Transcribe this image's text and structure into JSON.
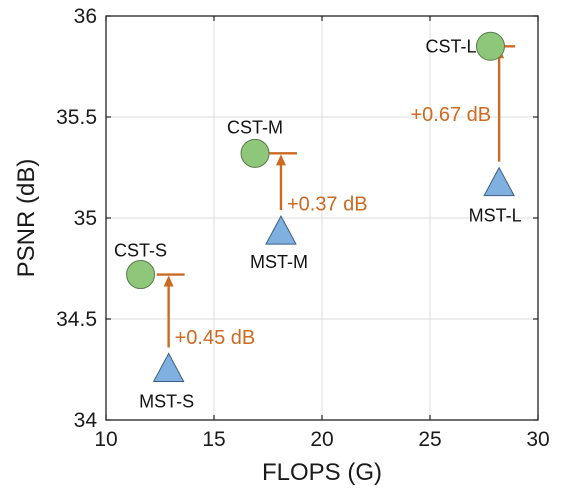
{
  "chart_data": {
    "type": "scatter",
    "xlabel": "FLOPS (G)",
    "ylabel": "PSNR (dB)",
    "xlim": [
      10,
      30
    ],
    "ylim": [
      34,
      36
    ],
    "xticks": [
      10,
      15,
      20,
      25,
      30
    ],
    "yticks": [
      34,
      34.5,
      35,
      35.5,
      36
    ],
    "xtick_labels": [
      "10",
      "15",
      "20",
      "25",
      "30"
    ],
    "ytick_labels": [
      "34",
      "34.5",
      "35",
      "35.5",
      "36"
    ],
    "grid": true,
    "series": [
      {
        "name": "CST",
        "marker": "circle",
        "color": "#8fc77a",
        "points": [
          {
            "label": "CST-S",
            "x": 11.6,
            "y": 34.72
          },
          {
            "label": "CST-M",
            "x": 16.9,
            "y": 35.32
          },
          {
            "label": "CST-L",
            "x": 27.8,
            "y": 35.85
          }
        ]
      },
      {
        "name": "MST",
        "marker": "triangle",
        "color": "#7fb0e0",
        "points": [
          {
            "label": "MST-S",
            "x": 12.9,
            "y": 34.26
          },
          {
            "label": "MST-M",
            "x": 18.1,
            "y": 34.94
          },
          {
            "label": "MST-L",
            "x": 28.2,
            "y": 35.18
          }
        ]
      }
    ],
    "annotations": [
      {
        "text": "+0.45 dB",
        "x": 12.9,
        "from": 34.26,
        "to": 34.72
      },
      {
        "text": "+0.37 dB",
        "x": 18.1,
        "from": 34.94,
        "to": 35.32
      },
      {
        "text": "+0.67 dB",
        "x": 28.2,
        "from": 35.18,
        "to": 35.85
      }
    ],
    "annotation_color": "#cc6a22"
  }
}
